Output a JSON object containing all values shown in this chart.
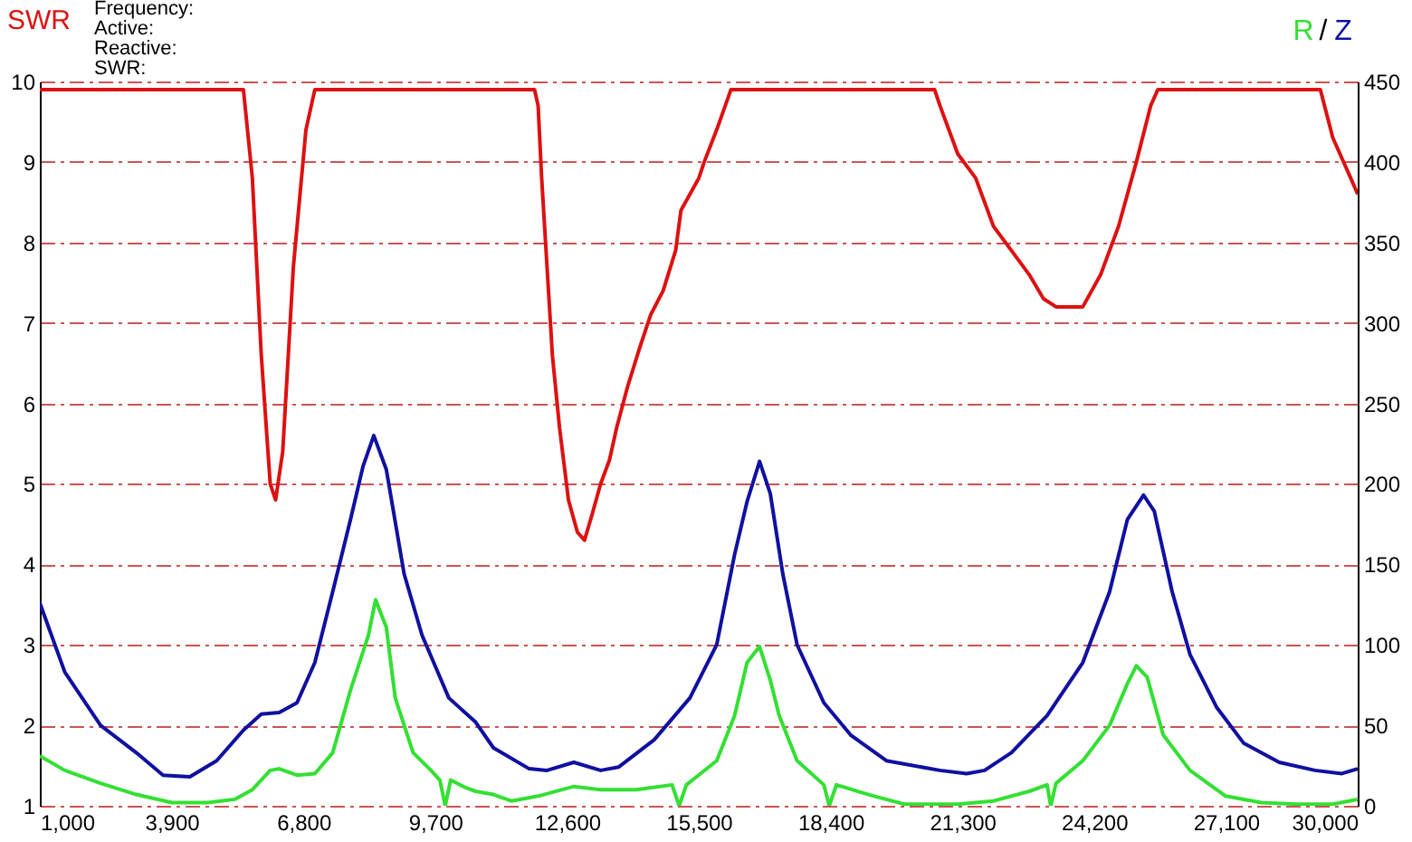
{
  "chart_data": {
    "type": "line",
    "ylabel": "SWR",
    "y2label": "R / Z",
    "annotations": [
      "Frequency:",
      "Active:",
      "Reactive:",
      "SWR:"
    ],
    "xlim": [
      1000,
      30000
    ],
    "xticks": [
      {
        "value": 1000,
        "label": "1,000"
      },
      {
        "value": 3900,
        "label": "3,900"
      },
      {
        "value": 6800,
        "label": "6,800"
      },
      {
        "value": 9700,
        "label": "9,700"
      },
      {
        "value": 12600,
        "label": "12,600"
      },
      {
        "value": 15500,
        "label": "15,500"
      },
      {
        "value": 18400,
        "label": "18,400"
      },
      {
        "value": 21300,
        "label": "21,300"
      },
      {
        "value": 24200,
        "label": "24,200"
      },
      {
        "value": 27100,
        "label": "27,100"
      },
      {
        "value": 30000,
        "label": "30,000"
      }
    ],
    "ylim": [
      1,
      10
    ],
    "yticks": [
      1,
      2,
      3,
      4,
      5,
      6,
      7,
      8,
      9,
      10
    ],
    "y2lim": [
      0,
      450
    ],
    "y2ticks": [
      0,
      50,
      100,
      150,
      200,
      250,
      300,
      350,
      400,
      450
    ],
    "grid": "y",
    "series": [
      {
        "color": "#dd1111",
        "axis": "y",
        "x": [
          1000,
          5480,
          5677,
          5873,
          6070,
          6188,
          6345,
          6580,
          6856,
          7052,
          11886,
          11965,
          12043,
          12161,
          12279,
          12436,
          12633,
          12829,
          12986,
          13143,
          13340,
          13537,
          13694,
          13930,
          14205,
          14441,
          14716,
          14991,
          15109,
          15502,
          15620,
          15895,
          16209,
          20689,
          20807,
          21200,
          21593,
          21986,
          22379,
          22772,
          23087,
          23362,
          23558,
          23951,
          24344,
          24737,
          25130,
          25445,
          25602,
          29178,
          29453,
          29846,
          30000
        ],
        "values": [
          9.9,
          9.9,
          8.8,
          6.6,
          5.0,
          4.8,
          5.4,
          7.7,
          9.4,
          9.9,
          9.9,
          9.7,
          8.8,
          7.7,
          6.6,
          5.7,
          4.8,
          4.4,
          4.3,
          4.6,
          5.0,
          5.3,
          5.7,
          6.2,
          6.7,
          7.1,
          7.4,
          7.9,
          8.4,
          8.8,
          9.0,
          9.4,
          9.9,
          9.9,
          9.7,
          9.1,
          8.8,
          8.2,
          7.9,
          7.6,
          7.3,
          7.2,
          7.2,
          7.2,
          7.6,
          8.2,
          9.0,
          9.7,
          9.9,
          9.9,
          9.3,
          8.8,
          8.6
        ]
      },
      {
        "color": "#33e033",
        "axis": "y2",
        "x": [
          1000,
          1550,
          2336,
          3122,
          3908,
          4694,
          5284,
          5677,
          6070,
          6266,
          6659,
          7052,
          7445,
          7838,
          8231,
          8388,
          8624,
          8821,
          9214,
          9607,
          9803,
          9921,
          10039,
          10393,
          10589,
          10982,
          11375,
          11965,
          12751,
          13340,
          14126,
          14912,
          15069,
          15227,
          15895,
          16288,
          16563,
          16838,
          17074,
          17271,
          17664,
          18253,
          18371,
          18528,
          19235,
          20021,
          20807,
          21200,
          21986,
          22772,
          23165,
          23244,
          23362,
          23951,
          24541,
          24934,
          25130,
          25366,
          25720,
          26310,
          27095,
          27881,
          28667,
          29453,
          30000
        ],
        "values": [
          31,
          22,
          14,
          7,
          2,
          2,
          4,
          10,
          22,
          23,
          19,
          20,
          33,
          72,
          106,
          128,
          111,
          67,
          33,
          22,
          16,
          0,
          16,
          11,
          9,
          7,
          3,
          6,
          12,
          10,
          10,
          13,
          0,
          13,
          28,
          56,
          89,
          99,
          78,
          56,
          28,
          13,
          0,
          13,
          7,
          1,
          1,
          1,
          3,
          9,
          13,
          0,
          14,
          28,
          50,
          76,
          87,
          80,
          44,
          22,
          6,
          2,
          1,
          1,
          4
        ]
      },
      {
        "color": "#1010a0",
        "axis": "y2",
        "x": [
          1000,
          1550,
          2336,
          3122,
          3712,
          4301,
          4891,
          5480,
          5873,
          6266,
          6659,
          7052,
          7445,
          7838,
          8113,
          8349,
          8624,
          9017,
          9410,
          10000,
          10589,
          10982,
          11768,
          12161,
          12751,
          13340,
          13733,
          14519,
          15305,
          15895,
          16288,
          16563,
          16838,
          17074,
          17350,
          17664,
          18253,
          18842,
          19628,
          20807,
          21396,
          21790,
          22379,
          23165,
          23951,
          24541,
          24934,
          25288,
          25524,
          25917,
          26310,
          26900,
          27488,
          28274,
          29060,
          29650,
          30000
        ],
        "values": [
          126,
          83,
          50,
          33,
          19,
          18,
          28,
          47,
          57,
          58,
          64,
          89,
          133,
          178,
          211,
          230,
          209,
          144,
          106,
          67,
          52,
          36,
          23,
          22,
          27,
          22,
          24,
          41,
          67,
          100,
          156,
          189,
          214,
          194,
          144,
          100,
          64,
          44,
          28,
          22,
          20,
          22,
          33,
          56,
          89,
          133,
          178,
          193,
          183,
          133,
          94,
          61,
          39,
          27,
          22,
          20,
          23
        ]
      }
    ]
  }
}
